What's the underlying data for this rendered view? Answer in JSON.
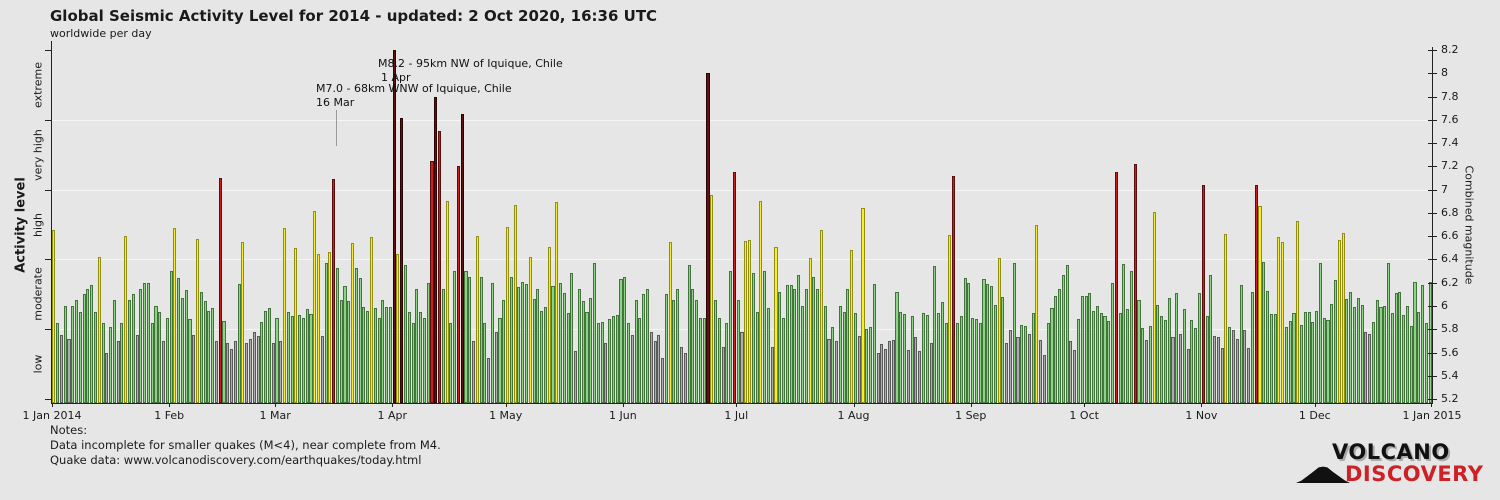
{
  "title": "Global Seismic Activity Level for 2014 - updated:  2 Oct 2020, 16:36 UTC",
  "subtitle": "worldwide per day",
  "left_axis": {
    "label": "Activity level",
    "boundaries": [
      8.2,
      7.6,
      7.0,
      6.4,
      5.8,
      5.2
    ],
    "categories": [
      {
        "label": "extreme",
        "range": [
          7.6,
          8.2
        ]
      },
      {
        "label": "very high",
        "range": [
          7.0,
          7.6
        ]
      },
      {
        "label": "high",
        "range": [
          6.4,
          7.0
        ]
      },
      {
        "label": "moderate",
        "range": [
          5.8,
          6.4
        ]
      },
      {
        "label": "low",
        "range": [
          5.2,
          5.8
        ]
      }
    ]
  },
  "right_axis": {
    "label": "Combined magnitude",
    "ticks": [
      "8.2",
      "8",
      "7.8",
      "7.6",
      "7.4",
      "7.2",
      "7",
      "6.8",
      "6.6",
      "6.4",
      "6.2",
      "6",
      "5.8",
      "5.6",
      "5.4",
      "5.2"
    ]
  },
  "annotations": [
    {
      "line1": "M8.2 - 95km NW of Iquique, Chile",
      "line2": "1 Apr"
    },
    {
      "line1": "M7.0 - 68km WNW of Iquique, Chile",
      "line2": "16 Mar"
    }
  ],
  "notes": {
    "heading": "Notes:",
    "line1": "Data incomplete for smaller quakes (M<4), near complete from M4.",
    "line2": "Quake data: www.volcanodiscovery.com/earthquakes/today.html"
  },
  "logo": {
    "line1": "VOLCANO",
    "line2": "DISCOVERY",
    "red": "#cc2127"
  },
  "chart_data": {
    "type": "bar",
    "title": "Global Seismic Activity Level for 2014",
    "xlabel": "",
    "ylabel_left": "Activity level",
    "ylabel_right": "Combined magnitude",
    "ylim": [
      5.2,
      8.2
    ],
    "grid": true,
    "gridlines": [
      7.6,
      7.0,
      6.4,
      5.8
    ],
    "x_tick_labels": [
      "1 Jan 2014",
      "1 Feb",
      "1 Mar",
      "1 Apr",
      "1 May",
      "1 Jun",
      "1 Jul",
      "1 Aug",
      "1 Sep",
      "1 Oct",
      "1 Nov",
      "1 Dec",
      "1 Jan 2015"
    ],
    "level_thresholds": {
      "low": [
        5.2,
        5.8
      ],
      "moderate": [
        5.8,
        6.4
      ],
      "high": [
        6.4,
        7.0
      ],
      "very_high": [
        7.0,
        7.6
      ],
      "extreme": [
        7.6,
        8.3
      ]
    },
    "level_colors": {
      "low": {
        "fill": "#adadad",
        "border": "#5a5a5a"
      },
      "moderate": {
        "fill": "#8fd287",
        "border": "#41753c"
      },
      "high": {
        "fill": "#f6ec33",
        "border": "#93900d"
      },
      "very_high": {
        "fill": "#cc1f1f",
        "border": "#5e0c0c"
      },
      "extreme": {
        "fill": "#5e1212",
        "border": "#2b0404"
      }
    },
    "months": [
      {
        "label": "Jan",
        "days": 31,
        "values": [
          6.65,
          5.85,
          5.75,
          6.0,
          5.72,
          6.0,
          6.05,
          5.95,
          6.1,
          6.15,
          6.18,
          5.95,
          6.42,
          5.85,
          5.6,
          5.82,
          6.05,
          5.7,
          5.85,
          6.6,
          6.05,
          6.1,
          5.75,
          6.15,
          6.2,
          6.2,
          5.85,
          6.0,
          5.95,
          5.7,
          5.9
        ]
      },
      {
        "label": "Feb",
        "days": 28,
        "values": [
          6.3,
          6.67,
          6.24,
          6.07,
          6.14,
          5.89,
          5.75,
          6.58,
          6.12,
          6.04,
          5.96,
          5.98,
          5.7,
          7.1,
          5.87,
          5.68,
          5.63,
          5.7,
          6.19,
          6.55,
          5.68,
          5.72,
          5.78,
          5.74,
          5.86,
          5.96,
          5.98,
          5.68
        ]
      },
      {
        "label": "Mar",
        "days": 31,
        "values": [
          5.9,
          5.7,
          6.67,
          5.95,
          5.91,
          6.5,
          5.92,
          5.9,
          5.97,
          5.93,
          6.82,
          6.45,
          5.74,
          6.37,
          6.46,
          7.09,
          6.33,
          6.05,
          6.17,
          6.04,
          6.54,
          6.33,
          6.24,
          5.99,
          5.96,
          6.59,
          5.98,
          5.9,
          6.05,
          5.99,
          5.99
        ]
      },
      {
        "label": "Apr",
        "days": 30,
        "values": [
          8.2,
          6.45,
          7.62,
          6.35,
          5.95,
          5.85,
          6.15,
          5.95,
          5.9,
          6.2,
          7.25,
          7.8,
          7.5,
          6.15,
          6.9,
          5.85,
          6.3,
          7.2,
          7.65,
          6.3,
          6.25,
          5.7,
          6.6,
          6.25,
          5.85,
          5.55,
          6.2,
          5.78,
          5.9,
          6.05
        ]
      },
      {
        "label": "May",
        "days": 31,
        "values": [
          6.68,
          6.25,
          6.87,
          6.16,
          6.21,
          6.19,
          6.42,
          6.06,
          6.15,
          5.96,
          5.99,
          6.51,
          6.17,
          6.89,
          6.2,
          6.11,
          5.94,
          6.28,
          5.61,
          6.15,
          6.04,
          5.95,
          6.07,
          6.37,
          5.85,
          5.86,
          5.68,
          5.89,
          5.91,
          5.92,
          6.23
        ]
      },
      {
        "label": "Jun",
        "days": 30,
        "values": [
          6.25,
          5.85,
          5.75,
          6.05,
          5.9,
          6.1,
          6.15,
          5.78,
          5.7,
          5.75,
          5.55,
          6.1,
          6.55,
          6.05,
          6.15,
          5.65,
          5.6,
          6.35,
          6.15,
          6.05,
          5.9,
          5.9,
          8.0,
          6.95,
          6.05,
          5.9,
          5.65,
          5.85,
          6.3,
          7.15
        ]
      },
      {
        "label": "Jul",
        "days": 31,
        "values": [
          6.05,
          5.78,
          6.56,
          6.57,
          6.28,
          5.95,
          6.9,
          6.3,
          5.98,
          5.65,
          6.51,
          6.12,
          5.9,
          6.18,
          6.18,
          6.15,
          6.27,
          6.0,
          6.15,
          6.41,
          6.25,
          6.15,
          6.65,
          6.0,
          5.72,
          5.82,
          5.7,
          6.0,
          5.95,
          6.15,
          6.48
        ]
      },
      {
        "label": "Aug",
        "days": 31,
        "values": [
          5.94,
          5.74,
          6.84,
          5.8,
          5.82,
          6.19,
          5.6,
          5.67,
          5.63,
          5.7,
          5.71,
          6.12,
          5.95,
          5.93,
          5.62,
          5.91,
          5.73,
          5.61,
          5.94,
          5.92,
          5.68,
          6.34,
          5.94,
          6.03,
          5.85,
          6.61,
          7.12,
          5.85,
          5.91,
          6.24,
          6.2
        ]
      },
      {
        "label": "Sep",
        "days": 30,
        "values": [
          5.9,
          5.89,
          5.85,
          6.23,
          6.19,
          6.17,
          6.01,
          6.41,
          6.08,
          5.68,
          5.79,
          6.37,
          5.73,
          5.84,
          5.83,
          5.76,
          5.94,
          6.7,
          5.71,
          5.58,
          5.85,
          5.98,
          6.09,
          6.15,
          6.27,
          6.35,
          5.7,
          5.62,
          5.89,
          6.09
        ]
      },
      {
        "label": "Oct",
        "days": 31,
        "values": [
          6.09,
          6.11,
          5.96,
          6.0,
          5.94,
          5.91,
          5.87,
          6.2,
          7.15,
          5.94,
          6.36,
          5.97,
          6.3,
          7.22,
          6.05,
          5.81,
          5.71,
          5.83,
          6.81,
          6.01,
          5.91,
          5.88,
          6.07,
          5.73,
          6.11,
          5.76,
          5.97,
          5.63,
          5.88,
          5.81,
          6.11
        ]
      },
      {
        "label": "Nov",
        "days": 30,
        "values": [
          7.04,
          5.91,
          6.27,
          5.74,
          5.73,
          5.64,
          6.62,
          5.82,
          5.79,
          5.72,
          6.18,
          5.79,
          5.64,
          6.12,
          7.04,
          6.86,
          6.38,
          6.13,
          5.93,
          5.93,
          6.59,
          6.55,
          5.82,
          5.87,
          5.94,
          6.73,
          5.84,
          5.95,
          5.95,
          5.86
        ]
      },
      {
        "label": "Dec",
        "days": 31,
        "values": [
          5.96,
          6.37,
          5.9,
          5.88,
          6.02,
          6.22,
          6.57,
          6.63,
          6.06,
          6.12,
          5.99,
          6.07,
          6.01,
          5.78,
          5.76,
          5.86,
          6.05,
          5.99,
          6.0,
          6.37,
          5.94,
          6.11,
          6.12,
          5.92,
          6.0,
          5.83,
          6.21,
          5.95,
          6.18,
          5.85,
          6.21
        ]
      }
    ]
  }
}
